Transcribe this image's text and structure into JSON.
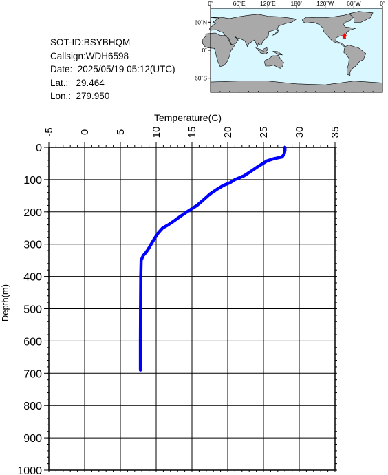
{
  "station": {
    "sot_id": "SOT-ID:BSYBHQM",
    "callsign": "Callsign:WDH6598",
    "date": "Date:  2025/05/19 05:12(UTC)",
    "lat": "Lat.:   29.464",
    "lon": "Lon.:  279.950"
  },
  "map": {
    "lon_labels": [
      "0˚",
      "60˚E",
      "120˚E",
      "180˚",
      "120˚W",
      "60˚W",
      "0˚"
    ],
    "lat_labels": [
      "60˚N",
      "0˚",
      "60˚S"
    ],
    "marker": {
      "lon": 279.95,
      "lat": 29.464
    },
    "colors": {
      "ocean": "#d9f7ff",
      "land": "#a9a9a9",
      "marker": "#ff0000"
    }
  },
  "chart_data": {
    "type": "line",
    "title": "",
    "xlabel": "Temperature(C)",
    "ylabel": "Depth(m)",
    "xlim": [
      -5,
      35
    ],
    "ylim": [
      0,
      1000
    ],
    "y_inverted": true,
    "x_axis_position": "top",
    "xticks": [
      -5,
      0,
      5,
      10,
      15,
      20,
      25,
      30,
      35
    ],
    "yticks": [
      0,
      100,
      200,
      300,
      400,
      500,
      600,
      700,
      800,
      900,
      1000
    ],
    "grid": true,
    "series": [
      {
        "color": "#0000ff",
        "points": [
          [
            28.0,
            0
          ],
          [
            28.0,
            10
          ],
          [
            27.9,
            20
          ],
          [
            27.6,
            30
          ],
          [
            26.5,
            35
          ],
          [
            25.5,
            42
          ],
          [
            24.2,
            60
          ],
          [
            23.2,
            75
          ],
          [
            22.3,
            88
          ],
          [
            21.0,
            100
          ],
          [
            20.3,
            110
          ],
          [
            19.4,
            118
          ],
          [
            18.5,
            130
          ],
          [
            17.5,
            145
          ],
          [
            16.5,
            165
          ],
          [
            15.7,
            180
          ],
          [
            15.0,
            190
          ],
          [
            14.3,
            200
          ],
          [
            13.5,
            212
          ],
          [
            12.5,
            228
          ],
          [
            11.7,
            240
          ],
          [
            10.9,
            250
          ],
          [
            10.3,
            265
          ],
          [
            9.7,
            285
          ],
          [
            9.3,
            300
          ],
          [
            8.9,
            315
          ],
          [
            8.6,
            325
          ],
          [
            8.2,
            335
          ],
          [
            7.9,
            350
          ],
          [
            7.85,
            400
          ],
          [
            7.82,
            500
          ],
          [
            7.8,
            600
          ],
          [
            7.8,
            690
          ]
        ]
      }
    ]
  }
}
